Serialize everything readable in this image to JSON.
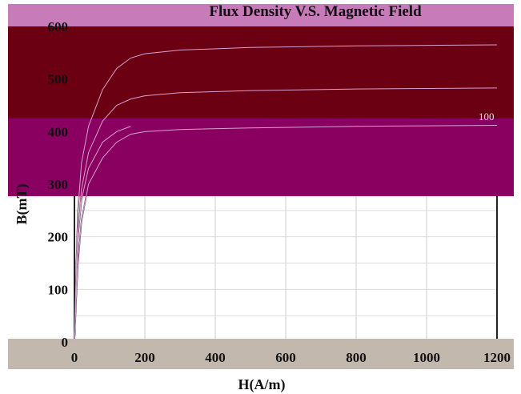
{
  "chart_data": {
    "type": "line",
    "title": "Flux Density V.S. Magnetic Field",
    "xlabel": "H(A/m)",
    "ylabel": "B(mT)",
    "xlim": [
      0,
      1200
    ],
    "ylim": [
      0,
      600
    ],
    "x_ticks": [
      "0",
      "200",
      "400",
      "600",
      "800",
      "1000",
      "1200"
    ],
    "y_ticks": [
      "0",
      "100",
      "200",
      "300",
      "400",
      "500",
      "600"
    ],
    "grid": true,
    "curve_labels": [
      "",
      "100"
    ],
    "series": [
      {
        "x": [
          0,
          5,
          10,
          20,
          40,
          80,
          120,
          160,
          200,
          300,
          500,
          800,
          1000,
          1200
        ],
        "y": [
          0,
          80,
          150,
          230,
          300,
          350,
          380,
          395,
          400,
          404,
          407,
          410,
          411,
          412
        ]
      },
      {
        "x": [
          0,
          5,
          10,
          20,
          40,
          80,
          120,
          160,
          200,
          300,
          500,
          800,
          1000,
          1200
        ],
        "y": [
          0,
          110,
          200,
          290,
          360,
          420,
          450,
          462,
          468,
          474,
          478,
          481,
          482,
          483
        ]
      },
      {
        "x": [
          0,
          5,
          10,
          20,
          40,
          80,
          120,
          160,
          200,
          300,
          500,
          800,
          1000,
          1200
        ],
        "y": [
          0,
          140,
          250,
          340,
          410,
          480,
          520,
          540,
          548,
          555,
          560,
          563,
          564,
          565
        ]
      },
      {
        "x": [
          0,
          3,
          6,
          10,
          20,
          40,
          80,
          120,
          160
        ],
        "y": [
          0,
          60,
          130,
          200,
          270,
          330,
          380,
          400,
          410
        ]
      }
    ]
  },
  "overlays": [
    {
      "color": "#c77bb8"
    },
    {
      "color": "#8a0060"
    },
    {
      "color": "#6b0012"
    },
    {
      "color": "#c2b8ae"
    }
  ]
}
